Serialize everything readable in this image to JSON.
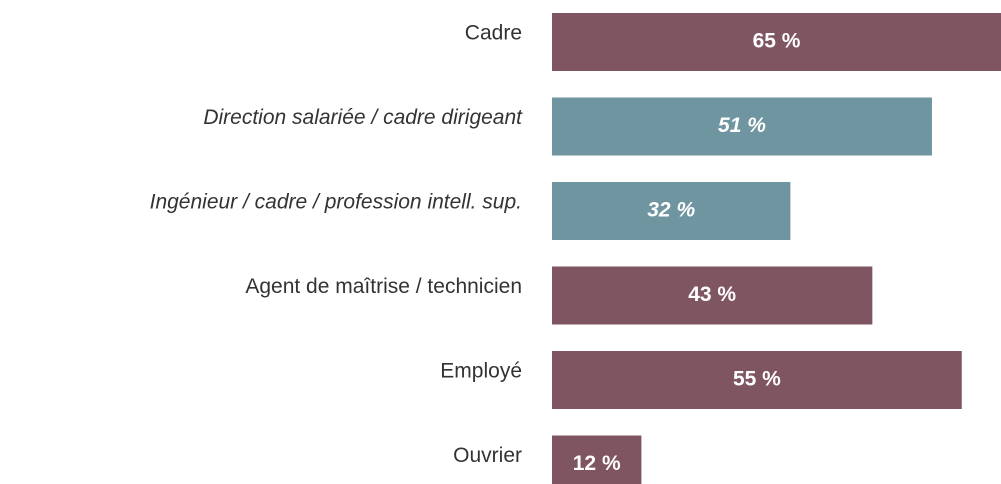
{
  "chart_data": {
    "type": "bar",
    "orientation": "horizontal",
    "categories": [
      "Cadre",
      "Direction salariée / cadre dirigeant",
      "Ingénieur / cadre / profession intell. sup.",
      "Agent de maîtrise / technicien",
      "Employé",
      "Ouvrier"
    ],
    "values": [
      65,
      51,
      32,
      43,
      55,
      12
    ],
    "value_labels": [
      "65 %",
      "51 %",
      "32 %",
      "43 %",
      "55 %",
      "12 %"
    ],
    "colors": [
      "#7f5561",
      "#6e95a0",
      "#6e95a0",
      "#7f5561",
      "#7f5561",
      "#7f5561"
    ]
  }
}
